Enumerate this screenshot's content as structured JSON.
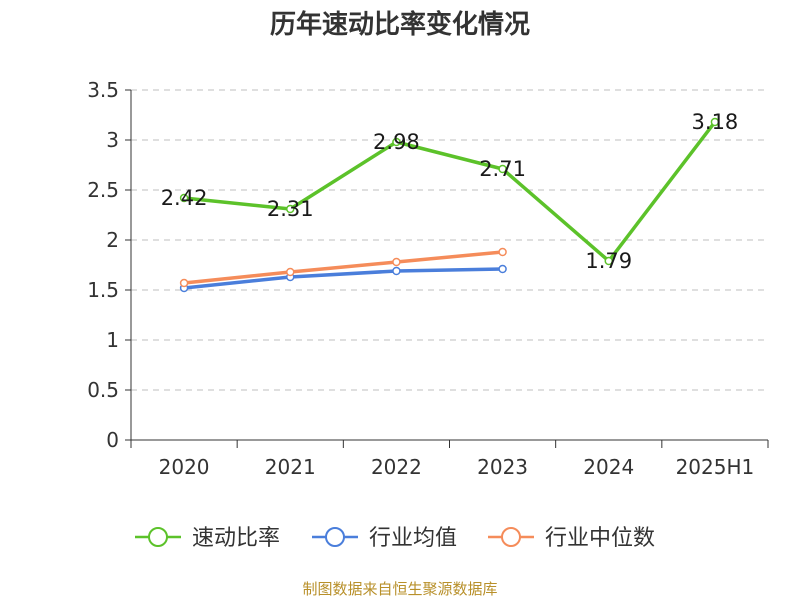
{
  "title": "历年速动比率变化情况",
  "source": "制图数据来自恒生聚源数据库",
  "chart_data": {
    "type": "line",
    "title": "历年速动比率变化情况",
    "categories": [
      "2020",
      "2021",
      "2022",
      "2023",
      "2024",
      "2025H1"
    ],
    "ylim": [
      0,
      3.5
    ],
    "yticks": [
      0,
      0.5,
      1,
      1.5,
      2,
      2.5,
      3,
      3.5
    ],
    "ytick_labels": [
      "0",
      "0.5",
      "1",
      "1.5",
      "2",
      "2.5",
      "3",
      "3.5"
    ],
    "grid": true,
    "legend_position": "bottom",
    "series": [
      {
        "name": "速动比率",
        "color": "#5cc22a",
        "values": [
          2.42,
          2.31,
          2.98,
          2.71,
          1.79,
          3.18
        ],
        "show_labels": true
      },
      {
        "name": "行业均值",
        "color": "#4a7edb",
        "values": [
          1.52,
          1.63,
          1.69,
          1.71,
          null,
          null
        ],
        "show_labels": false
      },
      {
        "name": "行业中位数",
        "color": "#f58c5a",
        "values": [
          1.57,
          1.68,
          1.78,
          1.88,
          null,
          null
        ],
        "show_labels": false
      }
    ]
  }
}
